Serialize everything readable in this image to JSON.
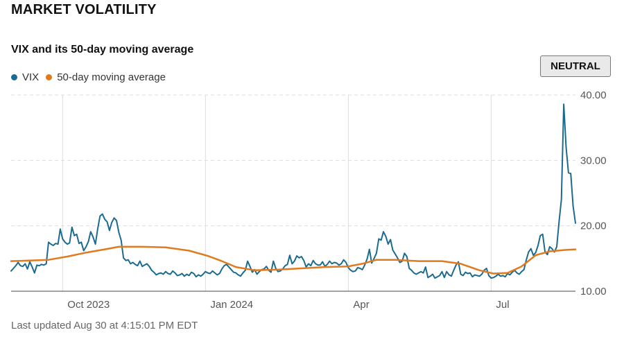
{
  "header": {
    "title": "MARKET VOLATILITY",
    "subtitle": "VIX and its 50-day moving average",
    "badge": "NEUTRAL",
    "footer": "Last updated Aug 30 at 4:15:01 PM EDT"
  },
  "colors": {
    "vix": "#1a6b8f",
    "ma": "#e07a1f",
    "grid": "#dddddd",
    "axis": "#555555"
  },
  "chart_data": {
    "type": "line",
    "x_unit": "trading day (Aug 31 2023 to Aug 30 2024)",
    "x_ticks": [
      {
        "label": "Oct 2023",
        "x": 22
      },
      {
        "label": "Jan 2024",
        "x": 83
      },
      {
        "label": "Apr",
        "x": 144
      },
      {
        "label": "Jul",
        "x": 205
      }
    ],
    "y_ticks": [
      "40.00",
      "30.00",
      "20.00",
      "10.00"
    ],
    "ylim": [
      10,
      40
    ],
    "xlim": [
      0,
      241
    ],
    "grid": true,
    "legend": "top-left",
    "series": [
      {
        "name": "VIX",
        "points": [
          [
            0,
            13.1
          ],
          [
            1,
            13.5
          ],
          [
            2,
            13.9
          ],
          [
            3,
            14.4
          ],
          [
            4,
            13.9
          ],
          [
            5,
            13.8
          ],
          [
            6,
            14.2
          ],
          [
            7,
            13.4
          ],
          [
            8,
            14.5
          ],
          [
            9,
            13.7
          ],
          [
            10,
            12.8
          ],
          [
            11,
            14.0
          ],
          [
            12,
            13.9
          ],
          [
            13,
            14.1
          ],
          [
            14,
            14.0
          ],
          [
            15,
            14.2
          ],
          [
            16,
            17.5
          ],
          [
            17,
            17.2
          ],
          [
            18,
            17.0
          ],
          [
            19,
            17.3
          ],
          [
            20,
            17.2
          ],
          [
            21,
            19.5
          ],
          [
            22,
            18.0
          ],
          [
            23,
            17.5
          ],
          [
            24,
            17.2
          ],
          [
            25,
            17.4
          ],
          [
            26,
            19.8
          ],
          [
            27,
            18.5
          ],
          [
            28,
            18.7
          ],
          [
            29,
            17.3
          ],
          [
            30,
            17.5
          ],
          [
            31,
            16.2
          ],
          [
            32,
            16.8
          ],
          [
            33,
            17.6
          ],
          [
            34,
            19.1
          ],
          [
            35,
            18.3
          ],
          [
            36,
            17.2
          ],
          [
            37,
            19.6
          ],
          [
            38,
            21.5
          ],
          [
            39,
            21.8
          ],
          [
            40,
            21.0
          ],
          [
            41,
            20.6
          ],
          [
            42,
            19.3
          ],
          [
            43,
            20.5
          ],
          [
            44,
            21.2
          ],
          [
            45,
            20.8
          ],
          [
            46,
            19.0
          ],
          [
            47,
            17.8
          ],
          [
            48,
            15.1
          ],
          [
            49,
            14.7
          ],
          [
            50,
            14.8
          ],
          [
            51,
            14.2
          ],
          [
            52,
            14.4
          ],
          [
            53,
            14.1
          ],
          [
            54,
            13.9
          ],
          [
            55,
            14.6
          ],
          [
            56,
            13.8
          ],
          [
            57,
            14.0
          ],
          [
            58,
            14.2
          ],
          [
            59,
            13.8
          ],
          [
            60,
            13.2
          ],
          [
            61,
            12.9
          ],
          [
            62,
            12.5
          ],
          [
            63,
            12.7
          ],
          [
            64,
            12.8
          ],
          [
            65,
            12.6
          ],
          [
            66,
            13.0
          ],
          [
            67,
            12.7
          ],
          [
            68,
            12.6
          ],
          [
            69,
            13.1
          ],
          [
            70,
            12.8
          ],
          [
            71,
            12.4
          ],
          [
            72,
            12.5
          ],
          [
            73,
            12.7
          ],
          [
            74,
            12.3
          ],
          [
            75,
            12.6
          ],
          [
            76,
            12.4
          ],
          [
            77,
            12.9
          ],
          [
            78,
            12.7
          ],
          [
            79,
            12.2
          ],
          [
            80,
            12.5
          ],
          [
            81,
            12.3
          ],
          [
            82,
            12.6
          ],
          [
            83,
            13.0
          ],
          [
            84,
            12.8
          ],
          [
            85,
            12.7
          ],
          [
            86,
            13.1
          ],
          [
            87,
            12.8
          ],
          [
            88,
            12.5
          ],
          [
            89,
            12.7
          ],
          [
            90,
            13.4
          ],
          [
            91,
            13.9
          ],
          [
            92,
            14.1
          ],
          [
            93,
            13.7
          ],
          [
            94,
            13.3
          ],
          [
            95,
            12.9
          ],
          [
            96,
            12.8
          ],
          [
            97,
            12.5
          ],
          [
            98,
            12.3
          ],
          [
            99,
            12.8
          ],
          [
            100,
            13.2
          ],
          [
            101,
            14.6
          ],
          [
            102,
            13.8
          ],
          [
            103,
            12.9
          ],
          [
            104,
            13.3
          ],
          [
            105,
            12.6
          ],
          [
            106,
            13.0
          ],
          [
            107,
            13.3
          ],
          [
            108,
            13.4
          ],
          [
            109,
            13.8
          ],
          [
            110,
            13.2
          ],
          [
            111,
            12.9
          ],
          [
            112,
            14.6
          ],
          [
            113,
            13.5
          ],
          [
            114,
            13.0
          ],
          [
            115,
            13.1
          ],
          [
            116,
            13.4
          ],
          [
            117,
            13.9
          ],
          [
            118,
            14.1
          ],
          [
            119,
            15.5
          ],
          [
            120,
            14.2
          ],
          [
            121,
            14.6
          ],
          [
            122,
            15.4
          ],
          [
            123,
            15.1
          ],
          [
            124,
            15.3
          ],
          [
            125,
            14.7
          ],
          [
            126,
            13.7
          ],
          [
            127,
            14.2
          ],
          [
            128,
            13.9
          ],
          [
            129,
            14.7
          ],
          [
            130,
            14.2
          ],
          [
            131,
            14.0
          ],
          [
            132,
            14.0
          ],
          [
            133,
            14.5
          ],
          [
            134,
            13.8
          ],
          [
            135,
            14.1
          ],
          [
            136,
            14.6
          ],
          [
            137,
            14.2
          ],
          [
            138,
            14.4
          ],
          [
            139,
            14.3
          ],
          [
            140,
            14.0
          ],
          [
            141,
            14.2
          ],
          [
            142,
            14.8
          ],
          [
            143,
            14.4
          ],
          [
            144,
            13.6
          ],
          [
            145,
            13.2
          ],
          [
            146,
            13.0
          ],
          [
            147,
            13.1
          ],
          [
            148,
            13.6
          ],
          [
            149,
            13.5
          ],
          [
            150,
            13.3
          ],
          [
            151,
            14.0
          ],
          [
            152,
            14.9
          ],
          [
            153,
            16.4
          ],
          [
            154,
            14.3
          ],
          [
            155,
            15.0
          ],
          [
            156,
            15.8
          ],
          [
            157,
            18.0
          ],
          [
            158,
            17.8
          ],
          [
            159,
            19.1
          ],
          [
            160,
            18.4
          ],
          [
            161,
            17.2
          ],
          [
            162,
            17.9
          ],
          [
            163,
            16.3
          ],
          [
            164,
            15.7
          ],
          [
            165,
            15.1
          ],
          [
            166,
            14.4
          ],
          [
            167,
            14.6
          ],
          [
            168,
            15.8
          ],
          [
            169,
            15.3
          ],
          [
            170,
            13.5
          ],
          [
            171,
            13.2
          ],
          [
            172,
            12.8
          ],
          [
            173,
            12.6
          ],
          [
            174,
            12.8
          ],
          [
            175,
            13.0
          ],
          [
            176,
            12.8
          ],
          [
            177,
            13.7
          ],
          [
            178,
            12.1
          ],
          [
            179,
            12.3
          ],
          [
            180,
            12.6
          ],
          [
            181,
            12.0
          ],
          [
            182,
            12.2
          ],
          [
            183,
            12.4
          ],
          [
            184,
            13.0
          ],
          [
            185,
            12.1
          ],
          [
            186,
            13.0
          ],
          [
            187,
            12.5
          ],
          [
            188,
            12.3
          ],
          [
            189,
            13.2
          ],
          [
            190,
            14.0
          ],
          [
            191,
            14.5
          ],
          [
            192,
            12.6
          ],
          [
            193,
            12.4
          ],
          [
            194,
            12.9
          ],
          [
            195,
            12.7
          ],
          [
            196,
            12.8
          ],
          [
            197,
            12.2
          ],
          [
            198,
            12.5
          ],
          [
            199,
            12.4
          ],
          [
            200,
            12.3
          ],
          [
            201,
            12.6
          ],
          [
            202,
            13.2
          ],
          [
            203,
            13.5
          ],
          [
            204,
            12.4
          ],
          [
            205,
            12.0
          ],
          [
            206,
            12.1
          ],
          [
            207,
            12.3
          ],
          [
            208,
            12.6
          ],
          [
            209,
            12.3
          ],
          [
            210,
            12.4
          ],
          [
            211,
            12.2
          ],
          [
            212,
            12.7
          ],
          [
            213,
            12.5
          ],
          [
            214,
            12.9
          ],
          [
            215,
            13.2
          ],
          [
            216,
            12.8
          ],
          [
            217,
            12.6
          ],
          [
            218,
            13.0
          ],
          [
            219,
            13.3
          ],
          [
            220,
            14.8
          ],
          [
            221,
            16.0
          ],
          [
            222,
            16.5
          ],
          [
            223,
            15.5
          ],
          [
            224,
            15.9
          ],
          [
            225,
            17.0
          ],
          [
            226,
            18.5
          ],
          [
            227,
            18.7
          ],
          [
            228,
            16.0
          ],
          [
            229,
            15.6
          ],
          [
            230,
            16.8
          ],
          [
            231,
            16.5
          ],
          [
            232,
            16.0
          ],
          [
            233,
            16.8
          ],
          [
            234,
            20.7
          ],
          [
            235,
            24.0
          ],
          [
            236,
            38.6
          ],
          [
            237,
            32.0
          ],
          [
            238,
            28.1
          ],
          [
            239,
            28.0
          ],
          [
            240,
            23.0
          ],
          [
            241,
            20.4
          ]
        ]
      },
      {
        "name": "50-day moving average",
        "points": [
          [
            0,
            14.6
          ],
          [
            8,
            14.7
          ],
          [
            16,
            14.8
          ],
          [
            24,
            15.3
          ],
          [
            32,
            15.9
          ],
          [
            40,
            16.4
          ],
          [
            46,
            16.8
          ],
          [
            56,
            16.8
          ],
          [
            66,
            16.7
          ],
          [
            76,
            16.2
          ],
          [
            84,
            15.4
          ],
          [
            90,
            14.6
          ],
          [
            96,
            13.7
          ],
          [
            104,
            13.2
          ],
          [
            114,
            13.3
          ],
          [
            124,
            13.5
          ],
          [
            134,
            13.7
          ],
          [
            144,
            13.8
          ],
          [
            150,
            14.2
          ],
          [
            156,
            14.8
          ],
          [
            164,
            14.8
          ],
          [
            174,
            14.6
          ],
          [
            184,
            14.6
          ],
          [
            192,
            14.2
          ],
          [
            200,
            13.2
          ],
          [
            206,
            12.7
          ],
          [
            212,
            12.8
          ],
          [
            218,
            13.8
          ],
          [
            224,
            15.5
          ],
          [
            230,
            16.1
          ],
          [
            236,
            16.3
          ],
          [
            241,
            16.4
          ]
        ]
      }
    ]
  }
}
